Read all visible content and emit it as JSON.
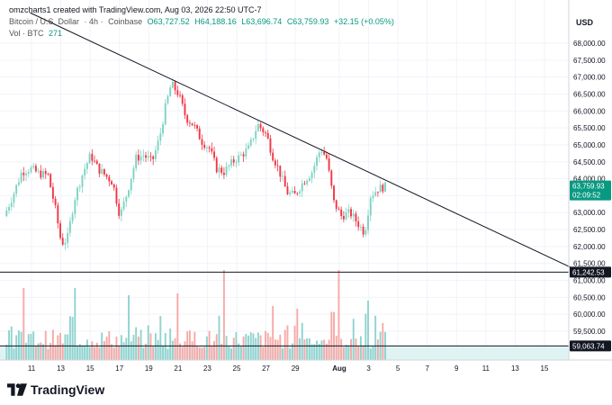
{
  "header": {
    "credit": "omzcharts1 created with TradingView.com, Aug 03, 2026 22:50 UTC-7",
    "symbol": "Bitcoin / U.S. Dollar",
    "interval": "· 4h ·",
    "exchange": "Coinbase",
    "open": "O63,727.52",
    "high": "H64,188.16",
    "low": "L63,696.74",
    "close": "C63,759.93",
    "change": "+32.15 (+0.05%)",
    "vol_label": "Vol · BTC",
    "vol_value": "271"
  },
  "brand": {
    "logo_text": "TradingView"
  },
  "colors": {
    "up": "#089981",
    "up_light": "#7dd3c2",
    "down": "#f23645",
    "down_light": "#f5a0a6",
    "vol_up": "#8fd3cf",
    "vol_down": "#f7a9a7",
    "price_tag": "#089981",
    "line": "#131722",
    "shade": "#e0f3f3"
  },
  "chart_data": {
    "type": "candlestick",
    "currency_label": "USD",
    "y_ticks": [
      "68,000.00",
      "67,500.00",
      "67,000.00",
      "66,500.00",
      "66,000.00",
      "65,500.00",
      "65,000.00",
      "64,500.00",
      "64,000.00",
      "63,500.00",
      "63,000.00",
      "62,500.00",
      "62,000.00",
      "61,500.00",
      "61,000.00",
      "60,500.00",
      "60,000.00",
      "59,500.00"
    ],
    "y_tick_values": [
      68000,
      67500,
      67000,
      66500,
      66000,
      65500,
      65000,
      64500,
      64000,
      63500,
      63000,
      62500,
      62000,
      61500,
      61000,
      60500,
      60000,
      59500
    ],
    "x_ticks": [
      "11",
      "13",
      "15",
      "17",
      "19",
      "21",
      "23",
      "25",
      "27",
      "29",
      "Aug",
      "3",
      "5",
      "7",
      "9",
      "11",
      "13",
      "15"
    ],
    "x_tick_days": [
      11,
      13,
      15,
      17,
      19,
      21,
      23,
      25,
      27,
      29,
      32,
      34,
      36,
      38,
      40,
      42,
      44,
      46
    ],
    "ylim": [
      58800,
      68500
    ],
    "xlim": [
      9.3,
      48.2
    ],
    "current_price": {
      "value": 63759.93,
      "label": "63,759.93",
      "countdown": "02:09:52"
    },
    "horizontal_lines": [
      {
        "value": 61242.53,
        "label": "61,242.53"
      },
      {
        "value": 59063.74,
        "label": "59,063.74"
      }
    ],
    "trendline": {
      "x1": 10.9,
      "y1": 68900,
      "x2": 48.2,
      "y2": 61300
    },
    "last_day": 35.2,
    "volume_max_value": 1.0,
    "anchors": [
      [
        9.3,
        62900
      ],
      [
        9.9,
        63500
      ],
      [
        10.5,
        64200
      ],
      [
        11.1,
        64300
      ],
      [
        11.7,
        64150
      ],
      [
        12.3,
        64100
      ],
      [
        12.8,
        63100
      ],
      [
        13.2,
        62100
      ],
      [
        13.6,
        62200
      ],
      [
        14.1,
        63400
      ],
      [
        14.7,
        64200
      ],
      [
        15.2,
        64700
      ],
      [
        15.7,
        64300
      ],
      [
        16.2,
        64100
      ],
      [
        16.7,
        63900
      ],
      [
        17.2,
        62900
      ],
      [
        17.7,
        63600
      ],
      [
        18.3,
        64600
      ],
      [
        18.8,
        64700
      ],
      [
        19.4,
        64500
      ],
      [
        19.9,
        65200
      ],
      [
        20.3,
        66100
      ],
      [
        20.7,
        66800
      ],
      [
        21.2,
        66500
      ],
      [
        21.7,
        65800
      ],
      [
        22.2,
        65600
      ],
      [
        22.8,
        65100
      ],
      [
        23.3,
        64900
      ],
      [
        23.8,
        64300
      ],
      [
        24.3,
        64200
      ],
      [
        24.9,
        64500
      ],
      [
        25.5,
        64700
      ],
      [
        26.0,
        64900
      ],
      [
        26.6,
        65600
      ],
      [
        27.2,
        65300
      ],
      [
        27.6,
        64700
      ],
      [
        28.0,
        64300
      ],
      [
        28.6,
        63600
      ],
      [
        29.1,
        63500
      ],
      [
        29.7,
        63900
      ],
      [
        30.3,
        64200
      ],
      [
        30.9,
        64900
      ],
      [
        31.3,
        64600
      ],
      [
        31.8,
        63300
      ],
      [
        32.3,
        62900
      ],
      [
        32.9,
        63000
      ],
      [
        33.4,
        62700
      ],
      [
        33.9,
        62400
      ],
      [
        34.3,
        63500
      ],
      [
        34.8,
        63700
      ],
      [
        35.2,
        63760
      ]
    ],
    "volume_spikes": [
      [
        24.1,
        1.0
      ],
      [
        31.9,
        1.0
      ],
      [
        14.0,
        0.8
      ],
      [
        10.4,
        0.8
      ],
      [
        17.6,
        0.72
      ],
      [
        20.9,
        0.74
      ],
      [
        34.0,
        0.66
      ],
      [
        27.4,
        0.6
      ],
      [
        29.2,
        0.57
      ]
    ]
  }
}
